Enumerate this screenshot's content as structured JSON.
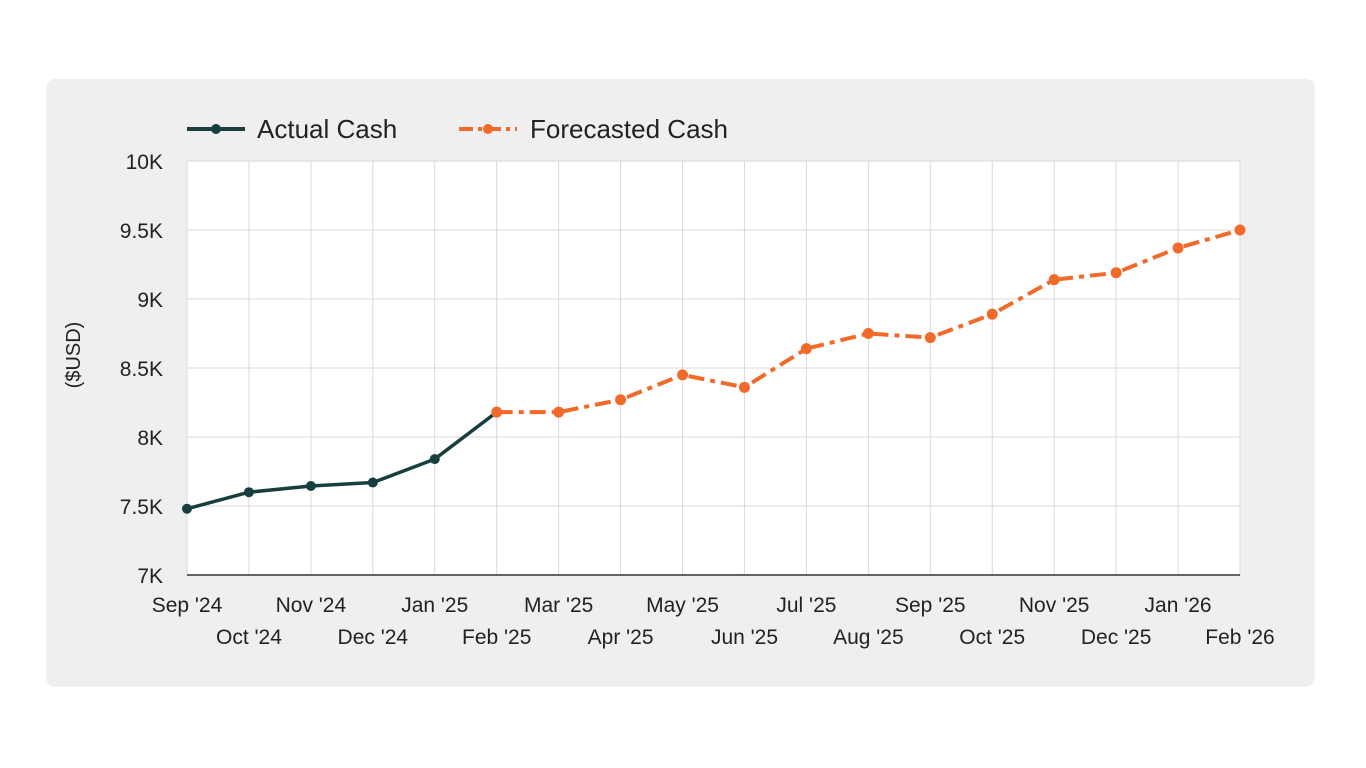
{
  "colors": {
    "actual": "#173f3f",
    "forecast": "#f26a2a",
    "grid": "#d9d9d9",
    "plot_bg": "#ffffff",
    "card_bg": "#efefef"
  },
  "chart_data": {
    "type": "line",
    "ylabel": "($USD)",
    "xlabel": "",
    "title": "",
    "ylim": [
      7000,
      10000
    ],
    "y_ticks": [
      7000,
      7500,
      8000,
      8500,
      9000,
      9500,
      10000
    ],
    "y_tick_labels": [
      "7K",
      "7.5K",
      "8K",
      "8.5K",
      "9K",
      "9.5K",
      "10K"
    ],
    "categories": [
      "Sep '24",
      "Oct '24",
      "Nov '24",
      "Dec '24",
      "Jan '25",
      "Feb '25",
      "Mar '25",
      "Apr '25",
      "May '25",
      "Jun '25",
      "Jul '25",
      "Aug '25",
      "Sep '25",
      "Oct '25",
      "Nov '25",
      "Dec '25",
      "Jan '26",
      "Feb '26"
    ],
    "legend_position": "top-left",
    "grid": true,
    "series": [
      {
        "name": "Actual Cash",
        "style": "solid",
        "values": [
          7480,
          7600,
          7645,
          7670,
          7840,
          8180,
          null,
          null,
          null,
          null,
          null,
          null,
          null,
          null,
          null,
          null,
          null,
          null
        ]
      },
      {
        "name": "Forecasted Cash",
        "style": "dash-dot",
        "values": [
          null,
          null,
          null,
          null,
          null,
          8180,
          8180,
          8270,
          8450,
          8360,
          8640,
          8750,
          8720,
          8890,
          9140,
          9190,
          9370,
          9500
        ]
      }
    ]
  }
}
